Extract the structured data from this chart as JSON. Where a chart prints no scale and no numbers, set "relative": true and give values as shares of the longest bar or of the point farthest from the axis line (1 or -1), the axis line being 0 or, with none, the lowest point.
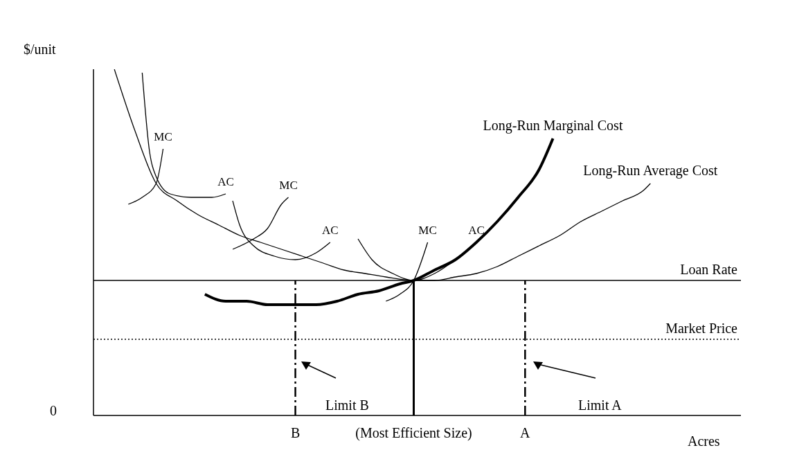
{
  "chart_data": {
    "type": "line",
    "relative": true,
    "ylabel": "$/unit",
    "xlabel": "Acres",
    "categories": [
      null,
      null,
      null,
      null,
      null,
      null,
      null,
      null,
      null,
      null,
      null,
      null,
      null,
      null,
      null,
      null,
      null,
      null,
      null,
      null,
      null,
      null,
      null,
      null,
      null,
      null,
      null,
      null,
      null,
      "B",
      null,
      null,
      null,
      null,
      null,
      null,
      null,
      null,
      null,
      null,
      null,
      null,
      null,
      null,
      null,
      null,
      "(Most Efficient Size)",
      null,
      null,
      null,
      null,
      null,
      null,
      null,
      null,
      null,
      null,
      null,
      null,
      null,
      null,
      null,
      "A",
      null,
      null,
      null,
      null,
      null,
      null,
      null,
      null,
      null,
      null,
      null,
      null,
      null,
      null,
      null,
      null,
      null,
      null,
      null,
      null,
      null,
      null,
      null,
      null,
      null,
      null,
      null,
      null,
      null,
      null,
      null
    ],
    "series": [
      {
        "name": "Long-Run Average Cost",
        "color": "#000000",
        "values": [
          null,
          null,
          null,
          1.0,
          null,
          null,
          0.82,
          null,
          null,
          0.67,
          null,
          null,
          0.62,
          null,
          null,
          0.58,
          null,
          null,
          0.55,
          null,
          null,
          0.52,
          null,
          null,
          0.5,
          null,
          null,
          0.48,
          null,
          null,
          0.46,
          null,
          null,
          0.44,
          null,
          null,
          0.42,
          null,
          null,
          0.41,
          null,
          null,
          0.4,
          null,
          null,
          null,
          0.39,
          null,
          null,
          0.39,
          null,
          null,
          0.4,
          null,
          null,
          0.41,
          null,
          null,
          0.43,
          null,
          null,
          0.46,
          null,
          null,
          0.49,
          null,
          null,
          0.52,
          null,
          null,
          0.56,
          null,
          null,
          0.59,
          null,
          null,
          0.62,
          null,
          null,
          0.65,
          0.67,
          null,
          null,
          null,
          null,
          null,
          null,
          null,
          null,
          null,
          null,
          null,
          null,
          null
        ]
      },
      {
        "name": "Long-Run Marginal Cost",
        "color": "#000000",
        "values": [
          null,
          null,
          null,
          null,
          null,
          null,
          null,
          null,
          null,
          null,
          null,
          null,
          null,
          null,
          null,
          null,
          0.35,
          null,
          null,
          0.33,
          null,
          null,
          0.33,
          null,
          null,
          0.32,
          null,
          null,
          null,
          0.32,
          null,
          null,
          0.32,
          null,
          null,
          0.33,
          null,
          null,
          0.35,
          null,
          null,
          0.36,
          null,
          null,
          0.38,
          null,
          0.39,
          null,
          null,
          0.42,
          null,
          null,
          0.45,
          null,
          null,
          0.5,
          null,
          null,
          0.56,
          null,
          null,
          0.63,
          null,
          null,
          0.71,
          null,
          0.8,
          null,
          null,
          null,
          null,
          null,
          null,
          null,
          null,
          null,
          null,
          null,
          null,
          null,
          null,
          null,
          null,
          null,
          null,
          null,
          null,
          null,
          null,
          null,
          null,
          null,
          null,
          null
        ]
      },
      {
        "name": "AC",
        "color": "#000000",
        "values": [
          null,
          null,
          null,
          null,
          null,
          null,
          null,
          0.99,
          0.77,
          0.69,
          null,
          0.64,
          null,
          null,
          0.63,
          null,
          null,
          0.63,
          null,
          0.64,
          null,
          null,
          null,
          null,
          null,
          null,
          null,
          null,
          null,
          null,
          null,
          null,
          null,
          null,
          null,
          null,
          null,
          null,
          null,
          null,
          null,
          null,
          null,
          null,
          null,
          null,
          null,
          null,
          null,
          null,
          null,
          null,
          null,
          null,
          null,
          null,
          null,
          null,
          null,
          null,
          null,
          null,
          null,
          null,
          null,
          null,
          null,
          null,
          null,
          null,
          null,
          null,
          null,
          null,
          null,
          null,
          null,
          null,
          null,
          null,
          null,
          null,
          null,
          null,
          null,
          null,
          null,
          null,
          null,
          null,
          null,
          null,
          null,
          null
        ]
      },
      {
        "name": "MC",
        "color": "#000000",
        "values": [
          null,
          null,
          null,
          null,
          null,
          0.61,
          null,
          0.63,
          null,
          0.67,
          0.77,
          null,
          null,
          null,
          null,
          null,
          null,
          null,
          null,
          null,
          null,
          null,
          null,
          null,
          null,
          null,
          null,
          null,
          null,
          null,
          null,
          null,
          null,
          null,
          null,
          null,
          null,
          null,
          null,
          null,
          null,
          null,
          null,
          null,
          null,
          null,
          null,
          null,
          null,
          null,
          null,
          null,
          null,
          null,
          null,
          null,
          null,
          null,
          null,
          null,
          null,
          null,
          null,
          null,
          null,
          null,
          null,
          null,
          null,
          null,
          null,
          null,
          null,
          null,
          null,
          null,
          null,
          null,
          null,
          null,
          null,
          null,
          null,
          null,
          null,
          null,
          null,
          null,
          null,
          null,
          null,
          null,
          null,
          null
        ]
      },
      {
        "name": "AC",
        "color": "#000000",
        "values": [
          null,
          null,
          null,
          null,
          null,
          null,
          null,
          null,
          null,
          null,
          null,
          null,
          null,
          null,
          null,
          null,
          null,
          null,
          null,
          null,
          0.62,
          0.55,
          null,
          0.49,
          null,
          null,
          0.46,
          null,
          null,
          0.45,
          null,
          null,
          0.47,
          null,
          0.5,
          null,
          null,
          null,
          null,
          null,
          null,
          null,
          null,
          null,
          null,
          null,
          null,
          null,
          null,
          null,
          null,
          null,
          null,
          null,
          null,
          null,
          null,
          null,
          null,
          null,
          null,
          null,
          null,
          null,
          null,
          null,
          null,
          null,
          null,
          null,
          null,
          null,
          null,
          null,
          null,
          null,
          null,
          null,
          null,
          null,
          null,
          null,
          null,
          null,
          null,
          null,
          null,
          null,
          null,
          null,
          null,
          null,
          null,
          null
        ]
      },
      {
        "name": "MC",
        "color": "#000000",
        "values": [
          null,
          null,
          null,
          null,
          null,
          null,
          null,
          null,
          null,
          null,
          null,
          null,
          null,
          null,
          null,
          null,
          null,
          null,
          null,
          null,
          0.48,
          null,
          null,
          0.51,
          null,
          0.54,
          null,
          0.61,
          0.63,
          null,
          null,
          null,
          null,
          null,
          null,
          null,
          null,
          null,
          null,
          null,
          null,
          null,
          null,
          null,
          null,
          null,
          null,
          null,
          null,
          null,
          null,
          null,
          null,
          null,
          null,
          null,
          null,
          null,
          null,
          null,
          null,
          null,
          null,
          null,
          null,
          null,
          null,
          null,
          null,
          null,
          null,
          null,
          null,
          null,
          null,
          null,
          null,
          null,
          null,
          null,
          null,
          null,
          null,
          null,
          null,
          null,
          null,
          null,
          null,
          null,
          null,
          null,
          null,
          null
        ]
      },
      {
        "name": "AC",
        "color": "#000000",
        "values": [
          null,
          null,
          null,
          null,
          null,
          null,
          null,
          null,
          null,
          null,
          null,
          null,
          null,
          null,
          null,
          null,
          null,
          null,
          null,
          null,
          null,
          null,
          null,
          null,
          null,
          null,
          null,
          null,
          null,
          null,
          null,
          null,
          null,
          null,
          null,
          null,
          null,
          null,
          0.51,
          null,
          0.45,
          null,
          null,
          0.41,
          null,
          null,
          0.39,
          null,
          null,
          0.41,
          null,
          null,
          0.45,
          null,
          null,
          0.5,
          null,
          null,
          null,
          null,
          null,
          null,
          null,
          null,
          null,
          null,
          null,
          null,
          null,
          null,
          null,
          null,
          null,
          null,
          null,
          null,
          null,
          null,
          null,
          null,
          null,
          null,
          null,
          null,
          null,
          null,
          null,
          null,
          null,
          null,
          null,
          null,
          null,
          null
        ]
      },
      {
        "name": "MC",
        "color": "#000000",
        "values": [
          null,
          null,
          null,
          null,
          null,
          null,
          null,
          null,
          null,
          null,
          null,
          null,
          null,
          null,
          null,
          null,
          null,
          null,
          null,
          null,
          null,
          null,
          null,
          null,
          null,
          null,
          null,
          null,
          null,
          null,
          null,
          null,
          null,
          null,
          null,
          null,
          null,
          null,
          null,
          null,
          null,
          null,
          0.33,
          null,
          0.35,
          null,
          0.39,
          null,
          0.5,
          null,
          null,
          null,
          null,
          null,
          null,
          null,
          null,
          null,
          null,
          null,
          null,
          null,
          null,
          null,
          null,
          null,
          null,
          null,
          null,
          null,
          null,
          null,
          null,
          null,
          null,
          null,
          null,
          null,
          null,
          null,
          null,
          null,
          null,
          null,
          null,
          null,
          null,
          null,
          null,
          null,
          null,
          null,
          null,
          null
        ]
      }
    ],
    "ref_lines": [
      {
        "axis": "y",
        "value": 0.39,
        "label": "Loan Rate",
        "color": "#000000",
        "line_style": "solid"
      },
      {
        "axis": "y",
        "value": 0.22,
        "label": "Market Price",
        "color": "#000000",
        "line_style": "dotted"
      },
      {
        "axis": "x",
        "value": "B",
        "color": "#000000",
        "line_style": "dashed"
      },
      {
        "axis": "x",
        "value": "(Most Efficient Size)",
        "color": "#000000",
        "line_style": "solid"
      },
      {
        "axis": "x",
        "value": "A",
        "color": "#000000",
        "line_style": "dashed"
      }
    ],
    "annotations": [
      "0",
      "Limit B",
      "Limit A"
    ]
  }
}
